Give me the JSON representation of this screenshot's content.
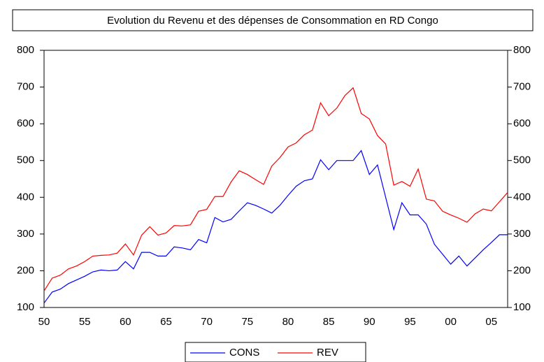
{
  "chart_data": {
    "type": "line",
    "title": "Evolution du Revenu et des dépenses de Consommation en RD Congo",
    "categories": [
      "50",
      null,
      null,
      null,
      null,
      "55",
      null,
      null,
      null,
      null,
      "60",
      null,
      null,
      null,
      null,
      "65",
      null,
      null,
      null,
      null,
      "70",
      null,
      null,
      null,
      null,
      "75",
      null,
      null,
      null,
      null,
      "80",
      null,
      null,
      null,
      null,
      "85",
      null,
      null,
      null,
      null,
      "90",
      null,
      null,
      null,
      null,
      "95",
      null,
      null,
      null,
      null,
      "00",
      null,
      null,
      null,
      null,
      "05",
      null,
      null
    ],
    "series": [
      {
        "name": "CONS",
        "color": "#0000ff",
        "values": [
          112,
          142,
          150,
          165,
          175,
          185,
          197,
          202,
          200,
          202,
          225,
          205,
          250,
          250,
          240,
          240,
          265,
          262,
          257,
          285,
          276,
          345,
          333,
          340,
          363,
          385,
          378,
          368,
          357,
          378,
          405,
          430,
          445,
          450,
          502,
          475,
          500,
          500,
          500,
          527,
          462,
          488,
          400,
          312,
          385,
          352,
          352,
          327,
          272,
          245,
          218,
          240,
          213,
          235,
          257,
          277,
          298,
          298
        ]
      },
      {
        "name": "REV",
        "color": "#ff0000",
        "values": [
          145,
          180,
          188,
          205,
          213,
          225,
          240,
          242,
          243,
          248,
          273,
          243,
          297,
          320,
          297,
          303,
          323,
          322,
          325,
          362,
          367,
          402,
          402,
          442,
          472,
          462,
          448,
          435,
          485,
          508,
          537,
          548,
          570,
          583,
          657,
          622,
          643,
          677,
          698,
          628,
          613,
          568,
          545,
          433,
          443,
          430,
          477,
          395,
          390,
          362,
          352,
          343,
          332,
          355,
          368,
          363,
          388,
          413
        ]
      }
    ],
    "ylim": [
      100,
      800
    ],
    "yticks": [
      100,
      200,
      300,
      400,
      500,
      600,
      700,
      800
    ],
    "y2lim": [
      100,
      800
    ],
    "y2ticks": [
      100,
      200,
      300,
      400,
      500,
      600,
      700,
      800
    ]
  }
}
